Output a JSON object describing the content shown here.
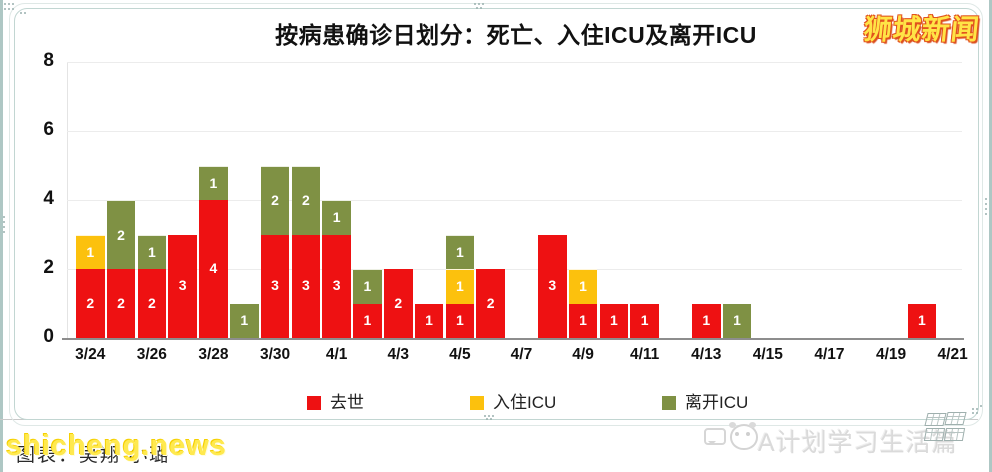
{
  "title": "按病患确诊日划分：死亡、入住ICU及离开ICU",
  "brand_logo": "狮城新闻",
  "watermarks": {
    "shicheng": "shicheng.news",
    "caption": "图表：吴翔 小璐",
    "aplan": "A计划学习生活篇"
  },
  "colors": {
    "died": "#ee1112",
    "icu_in": "#fcc10d",
    "icu_out": "#7f9144",
    "gridline": "#ececec",
    "axis": "#8d8d8d",
    "brand_yellow": "#ffe446",
    "brand_outline": "#e2531d"
  },
  "legend": [
    {
      "label": "去世",
      "color": "#ee1112"
    },
    {
      "label": "入住ICU",
      "color": "#fcc10d"
    },
    {
      "label": "离开ICU",
      "color": "#7f9144"
    }
  ],
  "chart_data": {
    "type": "bar",
    "stacked": true,
    "title": "按病患确诊日划分：死亡、入住ICU及离开ICU",
    "categories": [
      "3/24",
      "3/25",
      "3/26",
      "3/27",
      "3/28",
      "3/29",
      "3/30",
      "3/31",
      "4/1",
      "4/2",
      "4/3",
      "4/4",
      "4/5",
      "4/6",
      "4/7",
      "4/8",
      "4/9",
      "4/10",
      "4/11",
      "4/12",
      "4/13",
      "4/14",
      "4/15",
      "4/16",
      "4/17",
      "4/18",
      "4/19",
      "4/20",
      "4/21"
    ],
    "x_tick_labels": [
      "3/24",
      "3/26",
      "3/28",
      "3/30",
      "4/1",
      "4/3",
      "4/5",
      "4/7",
      "4/9",
      "4/11",
      "4/13",
      "4/15",
      "4/17",
      "4/19",
      "4/21"
    ],
    "series": [
      {
        "name": "去世",
        "color": "#ee1112",
        "values": [
          2,
          2,
          2,
          3,
          4,
          0,
          3,
          3,
          3,
          1,
          2,
          1,
          1,
          2,
          0,
          3,
          1,
          1,
          1,
          0,
          1,
          0,
          0,
          0,
          0,
          0,
          0,
          1,
          0
        ]
      },
      {
        "name": "入住ICU",
        "color": "#fcc10d",
        "values": [
          1,
          0,
          0,
          0,
          0,
          0,
          0,
          0,
          0,
          0,
          0,
          0,
          1,
          0,
          0,
          0,
          1,
          0,
          0,
          0,
          0,
          0,
          0,
          0,
          0,
          0,
          0,
          0,
          0
        ]
      },
      {
        "name": "离开ICU",
        "color": "#7f9144",
        "values": [
          0,
          2,
          1,
          0,
          1,
          1,
          2,
          2,
          1,
          1,
          0,
          0,
          1,
          0,
          0,
          0,
          0,
          0,
          0,
          0,
          0,
          1,
          0,
          0,
          0,
          0,
          0,
          0,
          0
        ]
      }
    ],
    "ylim": [
      0,
      8
    ],
    "yticks": [
      0,
      2,
      4,
      6,
      8
    ],
    "xlabel": "",
    "ylabel": "",
    "grid": true,
    "legend_position": "bottom",
    "bar_value_labels": true
  }
}
